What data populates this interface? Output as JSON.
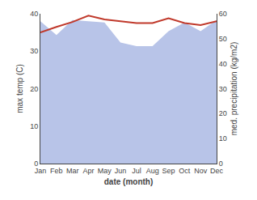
{
  "chart_data": {
    "type": "line",
    "x_label": "date (month)",
    "y_label": "max temp (C)",
    "y2_label": "med. precipitation (kg/m2)",
    "categories": [
      "Jan",
      "Feb",
      "Mar",
      "Apr",
      "May",
      "Jun",
      "Jul",
      "Aug",
      "Sep",
      "Oct",
      "Nov",
      "Dec"
    ],
    "series": [
      {
        "type": "line",
        "color": "#c0392b",
        "values": [
          35.0,
          36.5,
          37.8,
          39.5,
          38.5,
          38.0,
          37.5,
          37.5,
          38.8,
          37.5,
          37.0,
          38.0
        ]
      },
      {
        "type": "area",
        "color": "#b8c4e8",
        "axis": "y2",
        "values": [
          57.0,
          51.5,
          57.5,
          57.0,
          56.5,
          48.5,
          47.0,
          47.0,
          53.0,
          56.5,
          53.0,
          57.5
        ]
      }
    ],
    "ylim": [
      0,
      40
    ],
    "yticks": [
      0,
      10,
      20,
      30,
      40
    ],
    "y2lim": [
      0,
      60
    ],
    "y2ticks": [
      0,
      10,
      20,
      30,
      40,
      50,
      60
    ],
    "grid": false
  }
}
